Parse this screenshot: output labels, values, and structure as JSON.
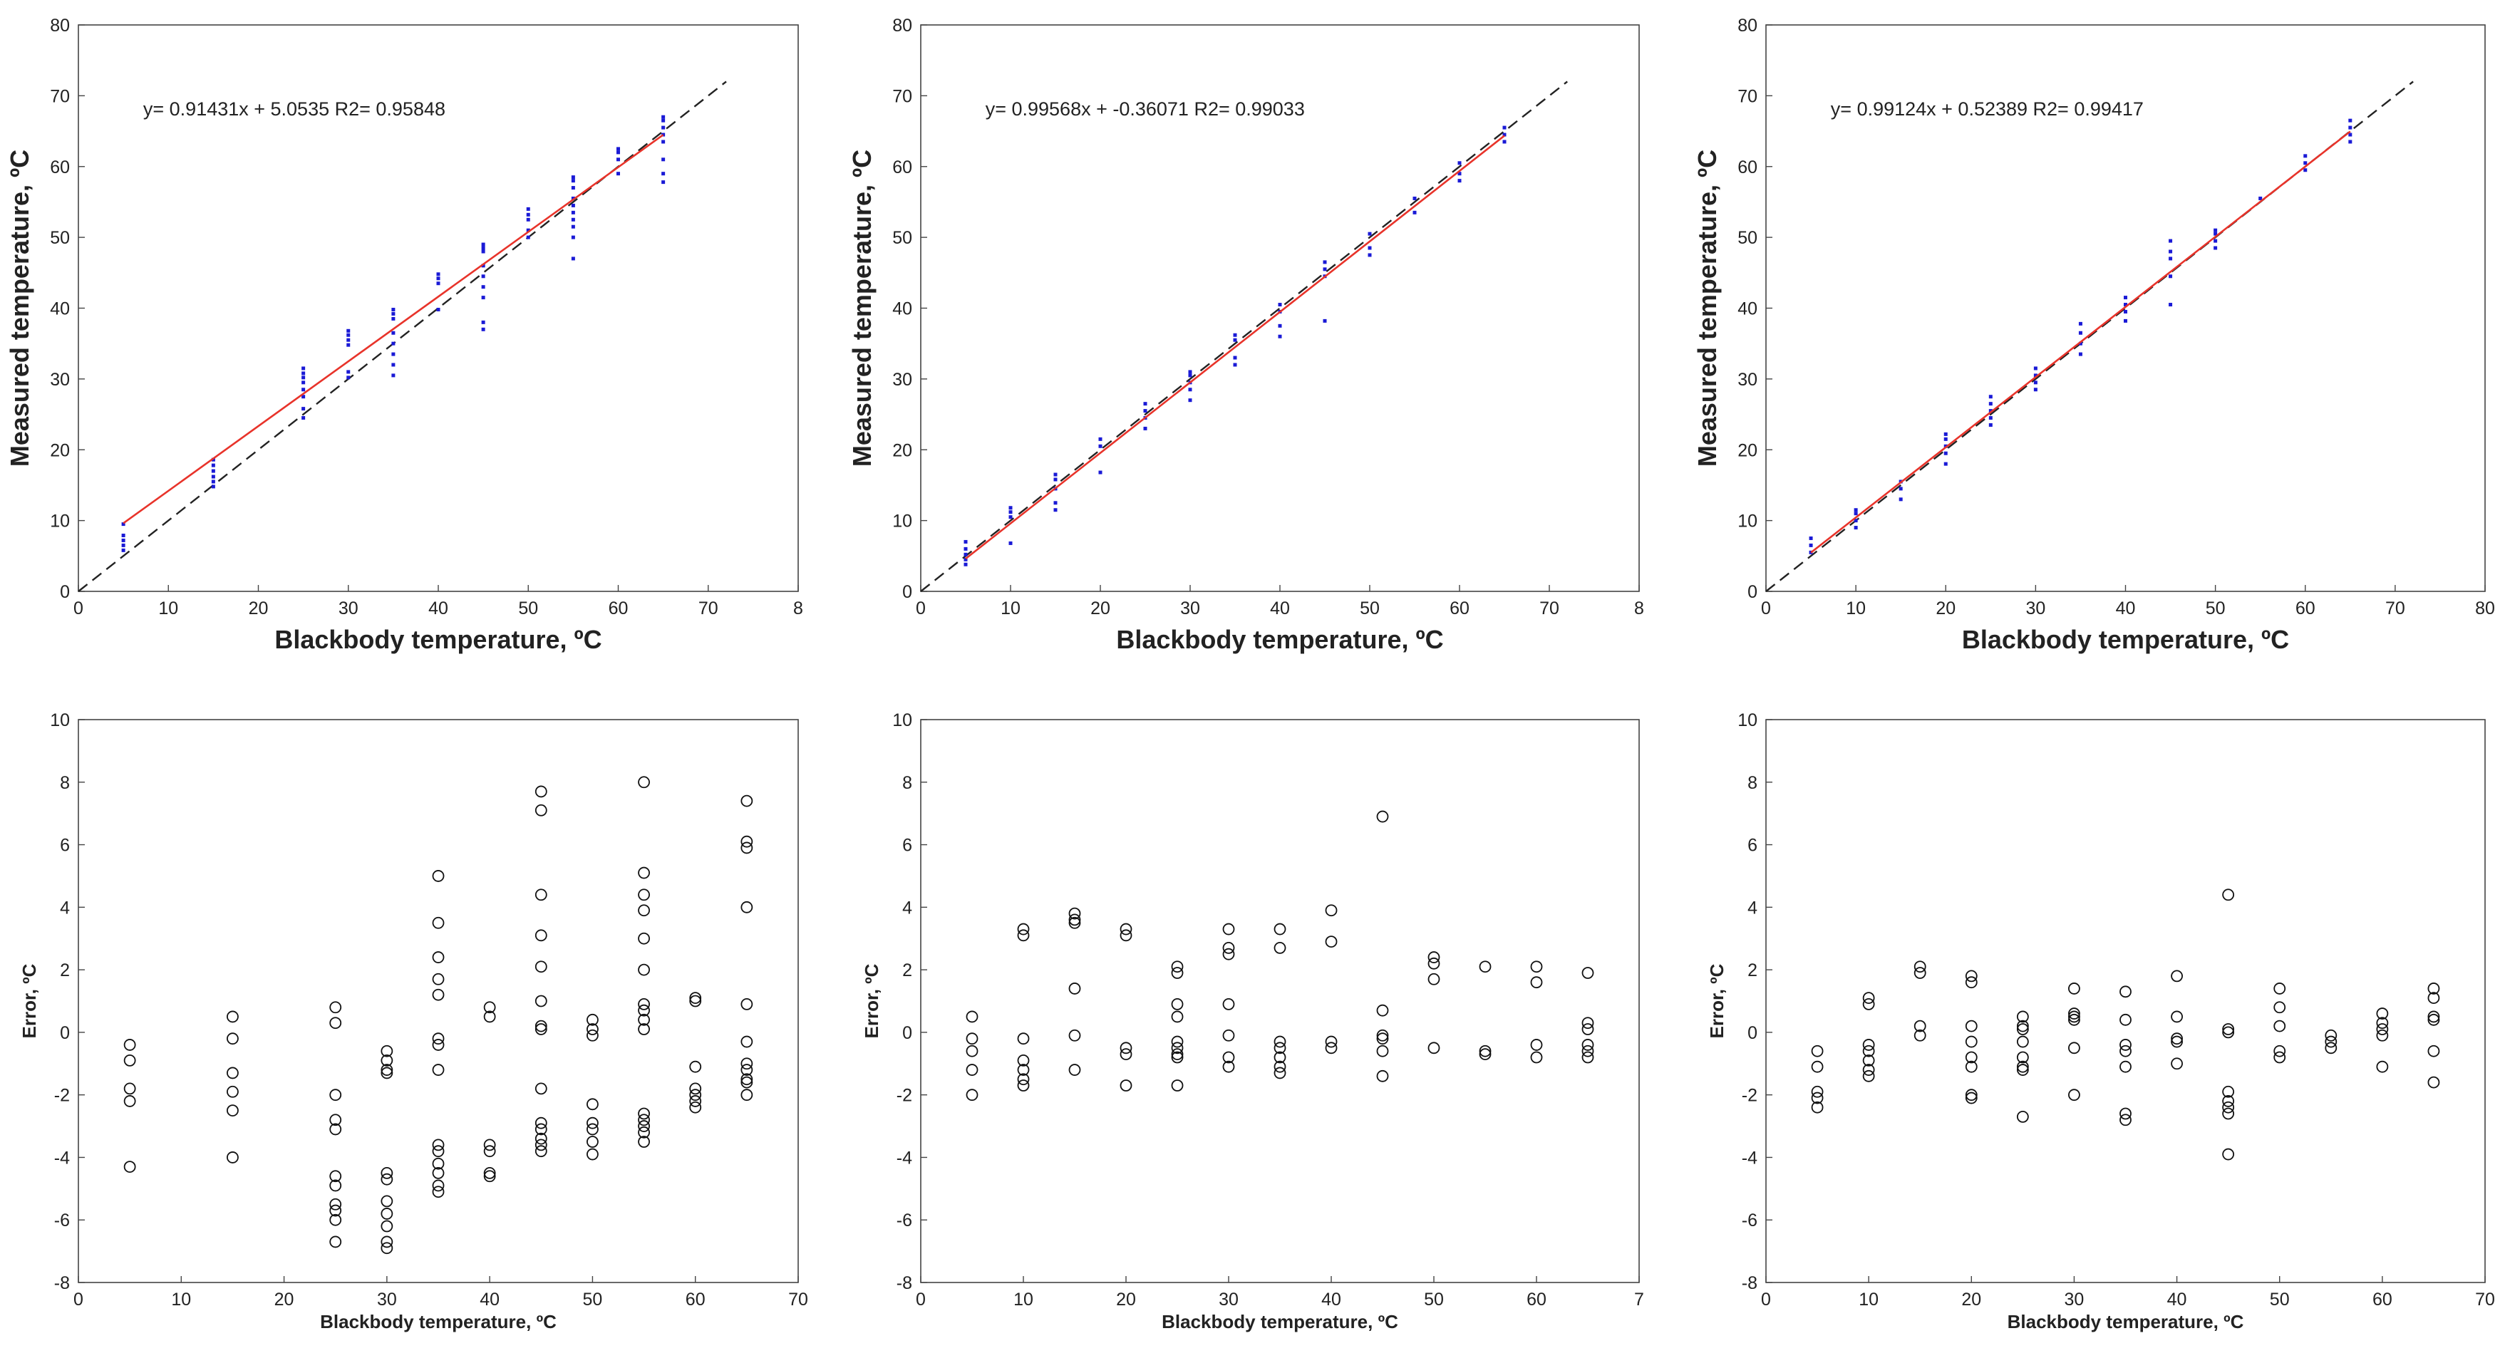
{
  "chart_data": [
    {
      "type": "scatter",
      "xlabel": "Blackbody temperature, ºC",
      "ylabel": "Measured temperature, ºC",
      "xlim": [
        0,
        80
      ],
      "ylim": [
        0,
        80
      ],
      "xticks": [
        "0",
        "10",
        "20",
        "30",
        "40",
        "50",
        "60",
        "70",
        "8"
      ],
      "yticks": [
        "0",
        "10",
        "20",
        "30",
        "40",
        "50",
        "60",
        "70",
        "80"
      ],
      "annotation": "y= 0.91431x + 5.0535  R2= 0.95848",
      "fit": {
        "slope": 0.91431,
        "intercept": 5.0535,
        "x_range": [
          5,
          65
        ],
        "color": "#e8332a"
      },
      "identity_line": {
        "x_range": [
          0,
          72
        ],
        "color": "#222222"
      },
      "points_color": "#1a1ad6",
      "groups": [
        {
          "x": 5,
          "y": [
            5.8,
            6.5,
            7.2,
            7.9,
            9.5
          ]
        },
        {
          "x": 15,
          "y": [
            14.8,
            15.5,
            16.2,
            17.0,
            17.8,
            18.6
          ]
        },
        {
          "x": 25,
          "y": [
            24.5,
            25.8,
            27.5,
            28.5,
            29.5,
            30.2,
            30.8,
            31.5
          ]
        },
        {
          "x": 30,
          "y": [
            30.2,
            31.0,
            34.8,
            35.5,
            36.2,
            36.8
          ]
        },
        {
          "x": 35,
          "y": [
            30.5,
            32.0,
            33.5,
            35.0,
            36.5,
            38.5,
            39.2,
            39.8
          ]
        },
        {
          "x": 40,
          "y": [
            39.8,
            43.5,
            44.2,
            44.8
          ]
        },
        {
          "x": 45,
          "y": [
            37.0,
            38.0,
            41.5,
            43.0,
            44.5,
            46.0,
            48.0,
            48.5,
            49.0
          ]
        },
        {
          "x": 50,
          "y": [
            50.0,
            51.0,
            52.5,
            53.2,
            54.0
          ]
        },
        {
          "x": 55,
          "y": [
            47.0,
            50.0,
            51.5,
            52.5,
            53.5,
            54.5,
            55.5,
            57.0,
            58.0,
            58.5
          ]
        },
        {
          "x": 60,
          "y": [
            59.0,
            61.0,
            62.0,
            62.5
          ]
        },
        {
          "x": 65,
          "y": [
            57.8,
            59.0,
            61.0,
            63.5,
            64.5,
            65.5,
            66.5,
            67.0
          ]
        }
      ]
    },
    {
      "type": "scatter",
      "xlabel": "Blackbody temperature, ºC",
      "ylabel": "Measured temperature, ºC",
      "xlim": [
        0,
        80
      ],
      "ylim": [
        0,
        80
      ],
      "xticks": [
        "0",
        "10",
        "20",
        "30",
        "40",
        "50",
        "60",
        "70",
        "8"
      ],
      "yticks": [
        "0",
        "10",
        "20",
        "30",
        "40",
        "50",
        "60",
        "70",
        "80"
      ],
      "annotation": "y= 0.99568x + -0.36071  R2= 0.99033",
      "fit": {
        "slope": 0.99568,
        "intercept": -0.36071,
        "x_range": [
          5,
          65
        ],
        "color": "#e8332a"
      },
      "identity_line": {
        "x_range": [
          0,
          72
        ],
        "color": "#222222"
      },
      "points_color": "#1a1ad6",
      "groups": [
        {
          "x": 5,
          "y": [
            3.8,
            4.5,
            5.2,
            6.0,
            7.0
          ]
        },
        {
          "x": 10,
          "y": [
            6.8,
            10.5,
            11.2,
            11.8
          ]
        },
        {
          "x": 15,
          "y": [
            11.5,
            12.5,
            14.5,
            15.8,
            16.5
          ]
        },
        {
          "x": 20,
          "y": [
            16.8,
            20.5,
            21.5
          ]
        },
        {
          "x": 25,
          "y": [
            23.0,
            24.5,
            25.5,
            26.5
          ]
        },
        {
          "x": 30,
          "y": [
            27.0,
            28.5,
            29.5,
            30.5,
            31.0
          ]
        },
        {
          "x": 35,
          "y": [
            32.0,
            33.0,
            35.5,
            36.2
          ]
        },
        {
          "x": 40,
          "y": [
            36.0,
            37.5,
            39.5,
            40.5
          ]
        },
        {
          "x": 45,
          "y": [
            38.2,
            44.5,
            45.5,
            46.5
          ]
        },
        {
          "x": 50,
          "y": [
            47.5,
            48.5,
            50.5
          ]
        },
        {
          "x": 55,
          "y": [
            53.5,
            55.5
          ]
        },
        {
          "x": 60,
          "y": [
            58.0,
            59.0,
            60.5
          ]
        },
        {
          "x": 65,
          "y": [
            63.5,
            64.5,
            65.5
          ]
        }
      ]
    },
    {
      "type": "scatter",
      "xlabel": "Blackbody temperature, ºC",
      "ylabel": "Measured temperature, ºC",
      "xlim": [
        0,
        80
      ],
      "ylim": [
        0,
        80
      ],
      "xticks": [
        "0",
        "10",
        "20",
        "30",
        "40",
        "50",
        "60",
        "70",
        "80"
      ],
      "yticks": [
        "0",
        "10",
        "20",
        "30",
        "40",
        "50",
        "60",
        "70",
        "80"
      ],
      "annotation": "y= 0.99124x + 0.52389  R2= 0.99417",
      "fit": {
        "slope": 0.99124,
        "intercept": 0.52389,
        "x_range": [
          5,
          65
        ],
        "color": "#e8332a"
      },
      "identity_line": {
        "x_range": [
          0,
          72
        ],
        "color": "#222222"
      },
      "points_color": "#1a1ad6",
      "groups": [
        {
          "x": 5,
          "y": [
            5.5,
            6.5,
            7.5
          ]
        },
        {
          "x": 10,
          "y": [
            9.0,
            10.0,
            11.0,
            11.5
          ]
        },
        {
          "x": 15,
          "y": [
            13.0,
            14.5,
            15.5
          ]
        },
        {
          "x": 20,
          "y": [
            18.0,
            19.5,
            20.5,
            21.5,
            22.2
          ]
        },
        {
          "x": 25,
          "y": [
            23.5,
            24.5,
            25.5,
            26.5,
            27.5
          ]
        },
        {
          "x": 30,
          "y": [
            28.5,
            29.5,
            30.5,
            31.5
          ]
        },
        {
          "x": 35,
          "y": [
            33.5,
            35.0,
            36.5,
            37.8
          ]
        },
        {
          "x": 40,
          "y": [
            38.2,
            39.5,
            40.5,
            41.5
          ]
        },
        {
          "x": 45,
          "y": [
            40.5,
            44.5,
            47.0,
            48.0,
            49.5
          ]
        },
        {
          "x": 50,
          "y": [
            48.5,
            49.5,
            50.5,
            51.0
          ]
        },
        {
          "x": 55,
          "y": [
            55.5
          ]
        },
        {
          "x": 60,
          "y": [
            59.5,
            60.5,
            61.5
          ]
        },
        {
          "x": 65,
          "y": [
            63.5,
            64.5,
            65.5,
            66.5
          ]
        }
      ]
    },
    {
      "type": "scatter",
      "xlabel": "Blackbody temperature, ºC",
      "ylabel": "Error, ºC",
      "xlim": [
        0,
        70
      ],
      "ylim": [
        -8,
        10
      ],
      "xticks": [
        "0",
        "10",
        "20",
        "30",
        "40",
        "50",
        "60",
        "70"
      ],
      "yticks": [
        "-8",
        "-6",
        "-4",
        "-2",
        "0",
        "2",
        "4",
        "6",
        "8",
        "10"
      ],
      "marker": "open-circle",
      "groups": [
        {
          "x": 5,
          "y": [
            -0.4,
            -0.9,
            -1.8,
            -2.2,
            -4.3
          ]
        },
        {
          "x": 15,
          "y": [
            0.5,
            -0.2,
            -1.3,
            -1.9,
            -2.5,
            -4.0
          ]
        },
        {
          "x": 25,
          "y": [
            0.8,
            0.3,
            -2.0,
            -2.8,
            -3.1,
            -4.6,
            -4.9,
            -5.5,
            -5.7,
            -6.0,
            -6.7
          ]
        },
        {
          "x": 30,
          "y": [
            -0.6,
            -0.9,
            -1.2,
            -1.3,
            -4.5,
            -4.7,
            -5.4,
            -5.8,
            -6.2,
            -6.7,
            -6.9
          ]
        },
        {
          "x": 35,
          "y": [
            5.0,
            3.5,
            2.4,
            1.7,
            1.2,
            -0.2,
            -0.4,
            -1.2,
            -3.6,
            -3.8,
            -4.2,
            -4.5,
            -4.9,
            -5.1
          ]
        },
        {
          "x": 40,
          "y": [
            0.8,
            0.5,
            -3.6,
            -3.8,
            -4.5,
            -4.6
          ]
        },
        {
          "x": 45,
          "y": [
            7.7,
            7.1,
            4.4,
            3.1,
            2.1,
            1.0,
            0.2,
            0.1,
            -1.8,
            -2.9,
            -3.1,
            -3.4,
            -3.6,
            -3.8
          ]
        },
        {
          "x": 50,
          "y": [
            0.4,
            0.1,
            -0.1,
            -2.3,
            -2.9,
            -3.1,
            -3.5,
            -3.9
          ]
        },
        {
          "x": 55,
          "y": [
            8.0,
            5.1,
            4.4,
            3.9,
            3.0,
            2.0,
            0.9,
            0.7,
            0.4,
            0.1,
            -2.6,
            -2.8,
            -3.0,
            -3.2,
            -3.5
          ]
        },
        {
          "x": 60,
          "y": [
            1.1,
            1.0,
            -1.1,
            -1.8,
            -2.0,
            -2.2,
            -2.4
          ]
        },
        {
          "x": 65,
          "y": [
            7.4,
            6.1,
            5.9,
            4.0,
            0.9,
            -0.3,
            -1.0,
            -1.2,
            -1.5,
            -1.6,
            -2.0
          ]
        }
      ]
    },
    {
      "type": "scatter",
      "xlabel": "Blackbody temperature, ºC",
      "ylabel": "Error, ºC",
      "xlim": [
        0,
        70
      ],
      "ylim": [
        -8,
        10
      ],
      "xticks": [
        "0",
        "10",
        "20",
        "30",
        "40",
        "50",
        "60",
        "7"
      ],
      "yticks": [
        "-8",
        "-6",
        "-4",
        "-2",
        "0",
        "2",
        "4",
        "6",
        "8",
        "10"
      ],
      "marker": "open-circle",
      "groups": [
        {
          "x": 5,
          "y": [
            0.5,
            -0.2,
            -0.6,
            -1.2,
            -2.0
          ]
        },
        {
          "x": 10,
          "y": [
            3.3,
            3.1,
            -0.2,
            -0.9,
            -1.2,
            -1.5,
            -1.7
          ]
        },
        {
          "x": 15,
          "y": [
            3.8,
            3.6,
            3.5,
            1.4,
            -0.1,
            -1.2
          ]
        },
        {
          "x": 20,
          "y": [
            3.3,
            3.1,
            -0.5,
            -0.7,
            -1.7
          ]
        },
        {
          "x": 25,
          "y": [
            2.1,
            1.9,
            0.9,
            0.5,
            -0.3,
            -0.5,
            -0.7,
            -0.8,
            -1.7
          ]
        },
        {
          "x": 30,
          "y": [
            3.3,
            2.7,
            2.5,
            0.9,
            -0.1,
            -0.8,
            -1.1
          ]
        },
        {
          "x": 35,
          "y": [
            3.3,
            2.7,
            -0.3,
            -0.5,
            -0.8,
            -1.1,
            -1.3
          ]
        },
        {
          "x": 40,
          "y": [
            3.9,
            2.9,
            -0.3,
            -0.5
          ]
        },
        {
          "x": 45,
          "y": [
            6.9,
            0.7,
            -0.1,
            -0.2,
            -0.6,
            -1.4
          ]
        },
        {
          "x": 50,
          "y": [
            2.4,
            2.2,
            1.7,
            -0.5
          ]
        },
        {
          "x": 55,
          "y": [
            2.1,
            -0.6,
            -0.7
          ]
        },
        {
          "x": 60,
          "y": [
            2.1,
            1.6,
            -0.4,
            -0.8
          ]
        },
        {
          "x": 65,
          "y": [
            1.9,
            0.3,
            0.1,
            -0.4,
            -0.6,
            -0.8
          ]
        }
      ]
    },
    {
      "type": "scatter",
      "xlabel": "Blackbody temperature, ºC",
      "ylabel": "Error, ºC",
      "xlim": [
        0,
        70
      ],
      "ylim": [
        -8,
        10
      ],
      "xticks": [
        "0",
        "10",
        "20",
        "30",
        "40",
        "50",
        "60",
        "70"
      ],
      "yticks": [
        "-8",
        "-6",
        "-4",
        "-2",
        "0",
        "2",
        "4",
        "6",
        "8",
        "10"
      ],
      "marker": "open-circle",
      "groups": [
        {
          "x": 5,
          "y": [
            -0.6,
            -1.1,
            -1.9,
            -2.1,
            -2.4
          ]
        },
        {
          "x": 10,
          "y": [
            1.1,
            0.9,
            -0.4,
            -0.6,
            -0.9,
            -1.2,
            -1.4
          ]
        },
        {
          "x": 15,
          "y": [
            2.1,
            1.9,
            0.2,
            -0.1
          ]
        },
        {
          "x": 20,
          "y": [
            1.8,
            1.6,
            0.2,
            -0.3,
            -0.8,
            -1.1,
            -2.0,
            -2.1
          ]
        },
        {
          "x": 25,
          "y": [
            0.5,
            0.2,
            0.1,
            -0.3,
            -0.8,
            -1.1,
            -1.2,
            -2.7
          ]
        },
        {
          "x": 30,
          "y": [
            1.4,
            0.6,
            0.5,
            0.4,
            -0.5,
            -2.0
          ]
        },
        {
          "x": 35,
          "y": [
            1.3,
            0.4,
            -0.4,
            -0.6,
            -1.1,
            -2.6,
            -2.8
          ]
        },
        {
          "x": 40,
          "y": [
            1.8,
            0.5,
            -0.2,
            -0.3,
            -1.0
          ]
        },
        {
          "x": 45,
          "y": [
            4.4,
            0.1,
            0.0,
            -1.9,
            -2.2,
            -2.4,
            -2.6,
            -3.9
          ]
        },
        {
          "x": 50,
          "y": [
            1.4,
            0.8,
            0.2,
            -0.6,
            -0.8
          ]
        },
        {
          "x": 55,
          "y": [
            -0.1,
            -0.3,
            -0.5
          ]
        },
        {
          "x": 60,
          "y": [
            0.6,
            0.3,
            0.1,
            -0.1,
            -1.1
          ]
        },
        {
          "x": 65,
          "y": [
            1.4,
            1.1,
            0.5,
            0.4,
            -0.6,
            -1.6
          ]
        }
      ]
    }
  ]
}
